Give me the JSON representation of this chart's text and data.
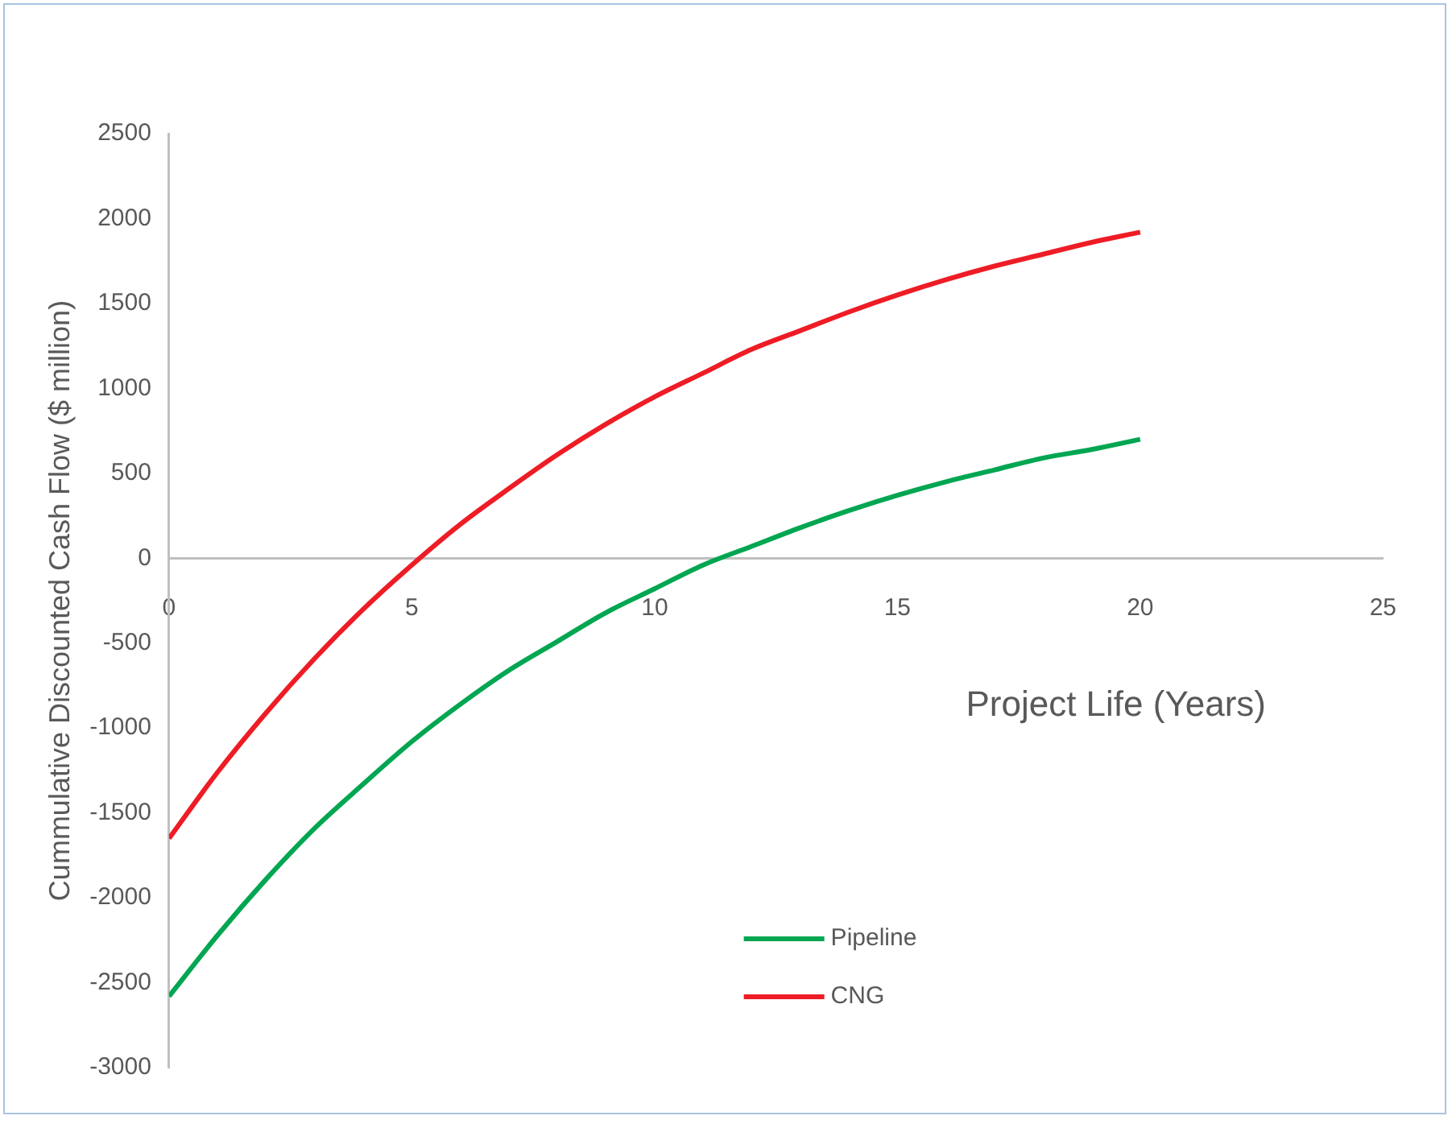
{
  "chart_data": {
    "type": "line",
    "xlabel": "Project Life (Years)",
    "ylabel": "Cummulative Discounted Cash Flow ($ million)",
    "x": [
      0,
      1,
      2,
      3,
      4,
      5,
      6,
      7,
      8,
      9,
      10,
      11,
      12,
      13,
      14,
      15,
      16,
      17,
      18,
      19,
      20
    ],
    "series": [
      {
        "name": "Pipeline",
        "color": "#00a651",
        "values": [
          -2580,
          -2220,
          -1890,
          -1590,
          -1330,
          -1080,
          -860,
          -660,
          -490,
          -320,
          -180,
          -40,
          70,
          180,
          280,
          370,
          450,
          520,
          590,
          640,
          700
        ]
      },
      {
        "name": "CNG",
        "color": "#ee1c25",
        "values": [
          -1650,
          -1260,
          -910,
          -590,
          -300,
          -40,
          200,
          410,
          610,
          790,
          950,
          1090,
          1230,
          1340,
          1450,
          1550,
          1640,
          1720,
          1790,
          1860,
          1920
        ]
      }
    ],
    "xlim": [
      0,
      25
    ],
    "xticks": [
      0,
      5,
      10,
      15,
      20,
      25
    ],
    "ylim": [
      -3000,
      2500
    ],
    "yticks": [
      -3000,
      -2500,
      -2000,
      -1500,
      -1000,
      -500,
      0,
      500,
      1000,
      1500,
      2000,
      2500
    ],
    "grid": false,
    "legend": "bottom",
    "marker": "none",
    "line_style": "solid"
  }
}
